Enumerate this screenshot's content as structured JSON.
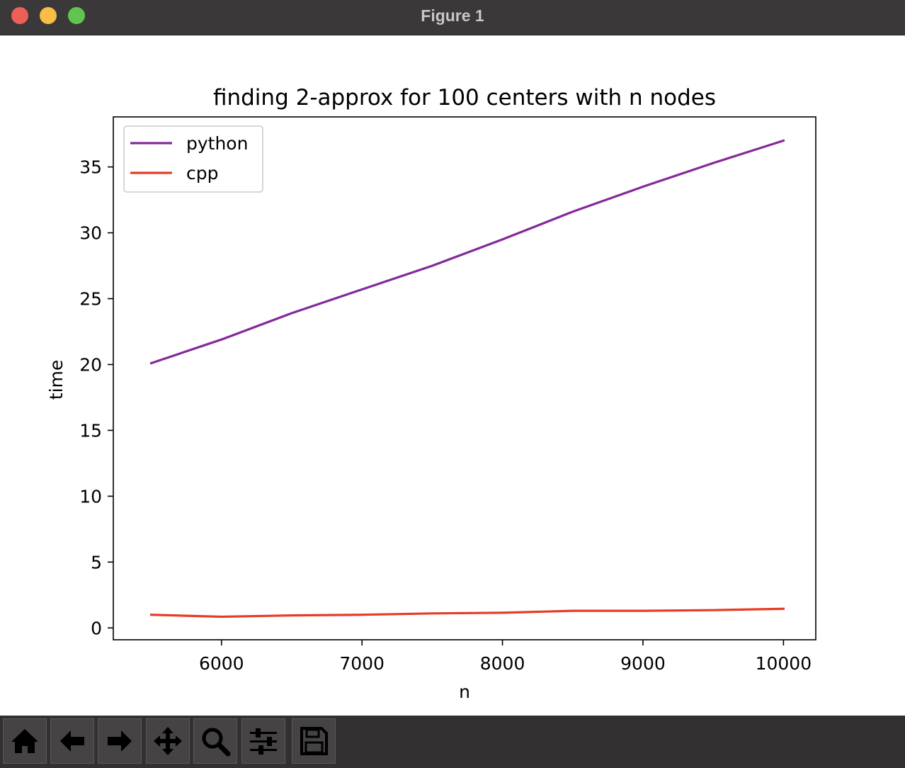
{
  "window": {
    "title": "Figure 1"
  },
  "toolbar": {
    "buttons": [
      {
        "name": "home-button",
        "icon": "home-icon"
      },
      {
        "name": "back-button",
        "icon": "arrow-left-icon"
      },
      {
        "name": "forward-button",
        "icon": "arrow-right-icon"
      },
      {
        "name": "pan-button",
        "icon": "move-icon"
      },
      {
        "name": "zoom-button",
        "icon": "magnifier-icon"
      },
      {
        "name": "configure-subplots-button",
        "icon": "sliders-icon"
      },
      {
        "name": "save-button",
        "icon": "floppy-disk-icon"
      }
    ]
  },
  "chart_data": {
    "type": "line",
    "title": "finding 2-approx for 100 centers with n nodes",
    "xlabel": "n",
    "ylabel": "time",
    "xlim": [
      5230,
      10230
    ],
    "ylim": [
      -0.9,
      38.8
    ],
    "xticks": [
      6000,
      7000,
      8000,
      9000,
      10000
    ],
    "yticks": [
      0,
      5,
      10,
      15,
      20,
      25,
      30,
      35
    ],
    "grid": false,
    "legend": "top-left",
    "series": [
      {
        "name": "python",
        "color": "#85299a",
        "x": [
          5500,
          6000,
          6500,
          7000,
          7500,
          8000,
          8500,
          9000,
          9500,
          10000
        ],
        "y": [
          20.1,
          21.9,
          23.9,
          25.7,
          27.5,
          29.5,
          31.6,
          33.5,
          35.3,
          37.0
        ]
      },
      {
        "name": "cpp",
        "color": "#e63c28",
        "x": [
          5500,
          6000,
          6500,
          7000,
          7500,
          8000,
          8500,
          9000,
          9500,
          10000
        ],
        "y": [
          1.0,
          0.85,
          0.95,
          1.0,
          1.1,
          1.15,
          1.3,
          1.3,
          1.35,
          1.45
        ]
      }
    ]
  }
}
